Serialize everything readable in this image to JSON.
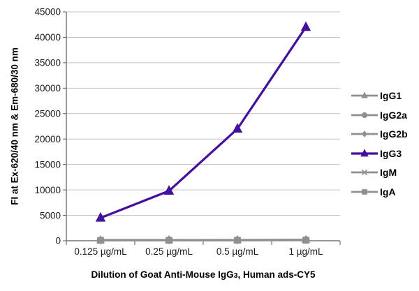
{
  "chart_data": {
    "type": "line",
    "title": "",
    "y_axis_title": "FI at Ex-620/40 nm & Em-680/30 nm",
    "x_axis_title": "Dilution of Goat Anti-Mouse IgG3, Human ads-CY5",
    "x_axis_title_parts": {
      "prefix": "Dilution of Goat Anti-Mouse IgG",
      "subscript": "3",
      "suffix": ", Human ads-CY5"
    },
    "categories": [
      "0.125 µg/mL",
      "0.25 µg/mL",
      "0.5 µg/mL",
      "1 µg/mL"
    ],
    "ylim": [
      0,
      45000
    ],
    "ytick_step": 5000,
    "ytick_labels": [
      "0",
      "5000",
      "10000",
      "15000",
      "20000",
      "25000",
      "30000",
      "35000",
      "40000",
      "45000"
    ],
    "grid": true,
    "legend_position": "right",
    "gridline_color": "#c2c2c2",
    "axis_color": "#595959",
    "series": [
      {
        "name": "IgG1",
        "marker": "triangle",
        "color": "#8f8f8f",
        "line_width": 2.75,
        "marker_size": 6,
        "values": [
          150,
          160,
          180,
          210
        ]
      },
      {
        "name": "IgG2a",
        "marker": "circle",
        "color": "#8f8f8f",
        "line_width": 2.75,
        "marker_size": 6,
        "values": [
          120,
          130,
          150,
          170
        ]
      },
      {
        "name": "IgG2b",
        "marker": "diamond",
        "color": "#8f8f8f",
        "line_width": 2.75,
        "marker_size": 6,
        "values": [
          100,
          110,
          130,
          150
        ]
      },
      {
        "name": "IgG3",
        "marker": "triangle",
        "color": "#44119c",
        "line_width": 3.25,
        "marker_size": 7.2,
        "values": [
          4500,
          9800,
          22000,
          42000
        ]
      },
      {
        "name": "IgM",
        "marker": "star",
        "color": "#8f8f8f",
        "line_width": 2.75,
        "marker_size": 6,
        "values": [
          90,
          95,
          110,
          130
        ]
      },
      {
        "name": "IgA",
        "marker": "square",
        "color": "#8f8f8f",
        "line_width": 2.75,
        "marker_size": 6,
        "values": [
          70,
          80,
          90,
          110
        ]
      }
    ]
  }
}
